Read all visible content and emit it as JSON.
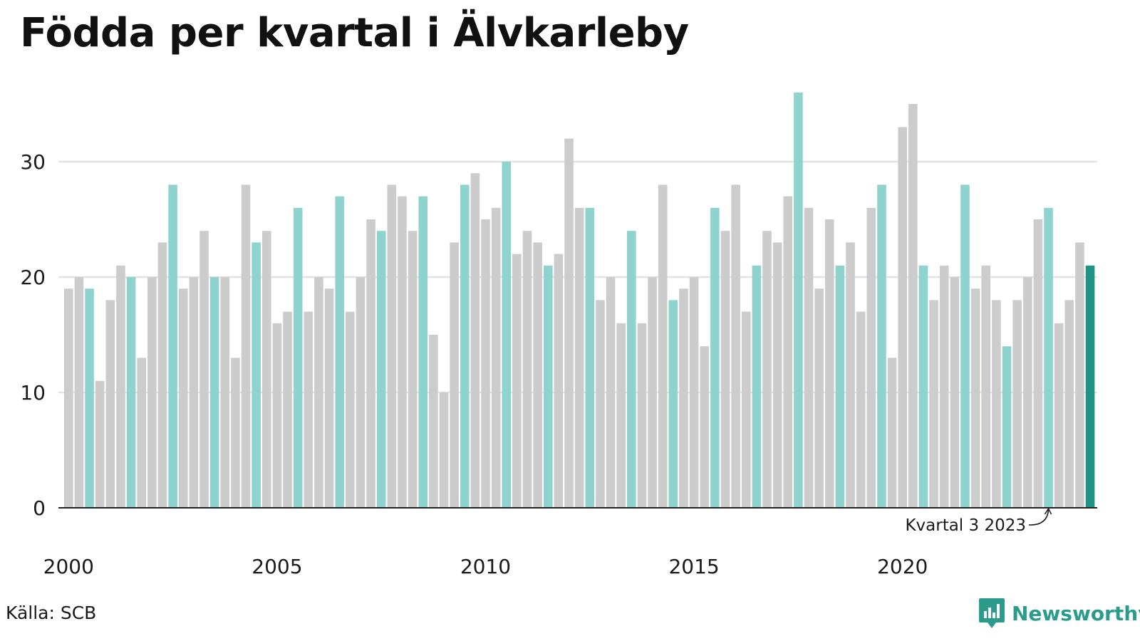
{
  "title": "Födda per kvartal i Älvkarleby",
  "source": "Källa: SCB",
  "brand": "Newsworthy",
  "colors": {
    "default": "#cccccc",
    "same_quarter": "#8ed3cd",
    "latest": "#1c9385",
    "grid": "#e3e3e3",
    "axis": "#222222",
    "brand": "#2b9c8c"
  },
  "chart_data": {
    "type": "bar",
    "title": "Födda per kvartal i Älvkarleby",
    "xlabel": "",
    "ylabel": "",
    "ylim": [
      0,
      36
    ],
    "yticks": [
      0,
      10,
      20,
      30
    ],
    "x_tick_labels": [
      "2000",
      "2005",
      "2010",
      "2015",
      "2020"
    ],
    "start_year": 2000,
    "grid": true,
    "annotation": "Kvartal 3 2023",
    "highlight_quarter": 3,
    "values": [
      19,
      20,
      19,
      11,
      18,
      21,
      20,
      13,
      20,
      23,
      28,
      19,
      20,
      24,
      20,
      20,
      13,
      28,
      23,
      24,
      16,
      17,
      26,
      17,
      20,
      19,
      27,
      17,
      20,
      25,
      24,
      28,
      27,
      24,
      27,
      15,
      10,
      23,
      28,
      29,
      25,
      26,
      30,
      22,
      24,
      23,
      21,
      22,
      32,
      26,
      26,
      18,
      20,
      16,
      24,
      16,
      20,
      28,
      18,
      19,
      20,
      14,
      26,
      24,
      28,
      17,
      21,
      24,
      23,
      27,
      36,
      26,
      19,
      25,
      21,
      23,
      17,
      26,
      28,
      13,
      33,
      35,
      21,
      18,
      21,
      20,
      28,
      19,
      21,
      18,
      14,
      18,
      20,
      25,
      26,
      16,
      18,
      23,
      21
    ]
  }
}
